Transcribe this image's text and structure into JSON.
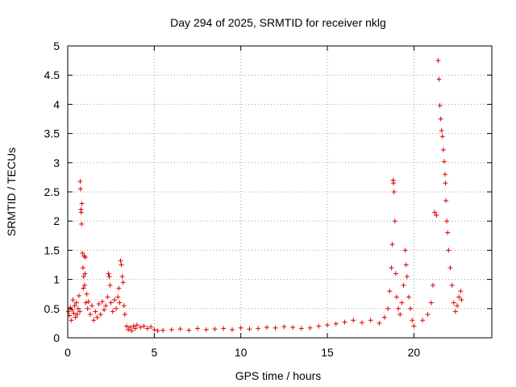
{
  "chart_data": {
    "type": "scatter",
    "title": "Day 294 of 2025, SRMTID for receiver nklg",
    "xlabel": "GPS time / hours",
    "ylabel": "SRMTID / TECUs",
    "xlim": [
      0,
      24.5
    ],
    "ylim": [
      0,
      5
    ],
    "xticks": [
      0,
      5,
      10,
      15,
      20
    ],
    "xtick_labels": [
      "0",
      "5",
      "10",
      "15",
      "20"
    ],
    "yticks": [
      0,
      0.5,
      1,
      1.5,
      2,
      2.5,
      3,
      3.5,
      4,
      4.5,
      5
    ],
    "ytick_labels": [
      "0",
      "0.5",
      "1",
      "1.5",
      "2",
      "2.5",
      "3",
      "3.5",
      "4",
      "4.5",
      "5"
    ],
    "grid": true,
    "marker": "plus",
    "color": "#e00000",
    "series": [
      {
        "name": "SRMTID",
        "points": [
          [
            0.05,
            0.45
          ],
          [
            0.1,
            0.38
          ],
          [
            0.15,
            0.52
          ],
          [
            0.2,
            0.3
          ],
          [
            0.25,
            0.48
          ],
          [
            0.3,
            0.65
          ],
          [
            0.35,
            0.42
          ],
          [
            0.4,
            0.55
          ],
          [
            0.45,
            0.35
          ],
          [
            0.5,
            0.6
          ],
          [
            0.55,
            0.4
          ],
          [
            0.6,
            0.5
          ],
          [
            0.65,
            0.72
          ],
          [
            0.7,
            0.45
          ],
          [
            0.72,
            2.68
          ],
          [
            0.74,
            2.55
          ],
          [
            0.76,
            2.2
          ],
          [
            0.78,
            2.15
          ],
          [
            0.8,
            1.95
          ],
          [
            0.82,
            2.3
          ],
          [
            0.85,
            1.45
          ],
          [
            0.88,
            1.2
          ],
          [
            0.9,
            0.85
          ],
          [
            0.92,
            1.05
          ],
          [
            0.95,
            1.4
          ],
          [
            0.98,
            0.9
          ],
          [
            1.0,
            1.1
          ],
          [
            1.02,
            1.38
          ],
          [
            1.05,
            0.6
          ],
          [
            1.1,
            0.75
          ],
          [
            1.15,
            0.5
          ],
          [
            1.2,
            0.62
          ],
          [
            1.3,
            0.4
          ],
          [
            1.4,
            0.55
          ],
          [
            1.5,
            0.3
          ],
          [
            1.6,
            0.45
          ],
          [
            1.7,
            0.35
          ],
          [
            1.8,
            0.58
          ],
          [
            1.9,
            0.4
          ],
          [
            2.0,
            0.62
          ],
          [
            2.1,
            0.48
          ],
          [
            2.2,
            0.55
          ],
          [
            2.3,
            0.7
          ],
          [
            2.35,
            1.1
          ],
          [
            2.4,
            1.05
          ],
          [
            2.45,
            0.9
          ],
          [
            2.5,
            0.6
          ],
          [
            2.6,
            0.45
          ],
          [
            2.7,
            0.65
          ],
          [
            2.8,
            0.5
          ],
          [
            2.9,
            0.7
          ],
          [
            2.95,
            0.85
          ],
          [
            3.0,
            0.6
          ],
          [
            3.05,
            1.32
          ],
          [
            3.1,
            1.25
          ],
          [
            3.15,
            1.05
          ],
          [
            3.2,
            0.95
          ],
          [
            3.25,
            0.55
          ],
          [
            3.3,
            0.4
          ],
          [
            3.4,
            0.2
          ],
          [
            3.5,
            0.14
          ],
          [
            3.6,
            0.18
          ],
          [
            3.7,
            0.12
          ],
          [
            3.8,
            0.2
          ],
          [
            3.9,
            0.16
          ],
          [
            4.0,
            0.22
          ],
          [
            4.2,
            0.18
          ],
          [
            4.4,
            0.2
          ],
          [
            4.6,
            0.16
          ],
          [
            4.8,
            0.19
          ],
          [
            5.0,
            0.14
          ],
          [
            5.2,
            0.12
          ],
          [
            5.5,
            0.13
          ],
          [
            6.0,
            0.14
          ],
          [
            6.5,
            0.15
          ],
          [
            7.0,
            0.13
          ],
          [
            7.5,
            0.16
          ],
          [
            8.0,
            0.14
          ],
          [
            8.5,
            0.15
          ],
          [
            9.0,
            0.16
          ],
          [
            9.5,
            0.14
          ],
          [
            10.0,
            0.17
          ],
          [
            10.5,
            0.15
          ],
          [
            11.0,
            0.16
          ],
          [
            11.5,
            0.18
          ],
          [
            12.0,
            0.17
          ],
          [
            12.5,
            0.19
          ],
          [
            13.0,
            0.18
          ],
          [
            13.5,
            0.16
          ],
          [
            14.0,
            0.17
          ],
          [
            14.5,
            0.2
          ],
          [
            15.0,
            0.22
          ],
          [
            15.5,
            0.24
          ],
          [
            16.0,
            0.27
          ],
          [
            16.5,
            0.3
          ],
          [
            17.0,
            0.26
          ],
          [
            17.5,
            0.3
          ],
          [
            18.0,
            0.25
          ],
          [
            18.3,
            0.35
          ],
          [
            18.5,
            0.5
          ],
          [
            18.6,
            0.8
          ],
          [
            18.7,
            1.2
          ],
          [
            18.75,
            1.6
          ],
          [
            18.8,
            2.7
          ],
          [
            18.82,
            2.65
          ],
          [
            18.85,
            2.5
          ],
          [
            18.9,
            2.0
          ],
          [
            18.95,
            1.1
          ],
          [
            19.0,
            0.7
          ],
          [
            19.1,
            0.5
          ],
          [
            19.2,
            0.4
          ],
          [
            19.3,
            0.6
          ],
          [
            19.4,
            0.9
          ],
          [
            19.5,
            1.5
          ],
          [
            19.55,
            1.25
          ],
          [
            19.6,
            1.05
          ],
          [
            19.7,
            0.7
          ],
          [
            19.8,
            0.5
          ],
          [
            19.9,
            0.3
          ],
          [
            20.0,
            0.2
          ],
          [
            20.5,
            0.3
          ],
          [
            20.8,
            0.4
          ],
          [
            21.0,
            0.6
          ],
          [
            21.1,
            0.9
          ],
          [
            21.2,
            2.15
          ],
          [
            21.3,
            2.1
          ],
          [
            21.4,
            4.75
          ],
          [
            21.45,
            4.43
          ],
          [
            21.5,
            3.98
          ],
          [
            21.55,
            3.75
          ],
          [
            21.6,
            3.55
          ],
          [
            21.65,
            3.45
          ],
          [
            21.7,
            3.22
          ],
          [
            21.75,
            3.02
          ],
          [
            21.8,
            2.8
          ],
          [
            21.82,
            2.65
          ],
          [
            21.85,
            2.35
          ],
          [
            21.9,
            2.0
          ],
          [
            21.95,
            1.8
          ],
          [
            22.0,
            1.5
          ],
          [
            22.1,
            1.2
          ],
          [
            22.2,
            0.9
          ],
          [
            22.3,
            0.6
          ],
          [
            22.4,
            0.45
          ],
          [
            22.5,
            0.55
          ],
          [
            22.6,
            0.7
          ],
          [
            22.7,
            0.8
          ],
          [
            22.75,
            0.65
          ]
        ]
      }
    ]
  }
}
